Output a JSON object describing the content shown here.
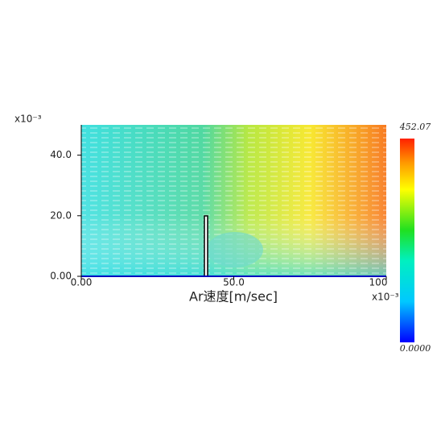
{
  "chart_data": {
    "type": "vector-field",
    "xlabel": "Ar速度[m/sec]",
    "x_multiplier": "x10⁻³",
    "y_multiplier": "x10⁻³",
    "xlim": [
      0,
      100
    ],
    "ylim": [
      0,
      50
    ],
    "xticks": [
      {
        "value": 0,
        "label": "0.00"
      },
      {
        "value": 50,
        "label": "50.0"
      },
      100
    ],
    "yticks": [
      {
        "value": 0,
        "label": "0.00"
      },
      {
        "value": 20,
        "label": "20.0"
      },
      {
        "value": 40,
        "label": "40.0"
      }
    ],
    "colorbar": {
      "lim": [
        0,
        452.07
      ],
      "ticks": [
        {
          "value": 0,
          "label": "0.0000"
        },
        452.07
      ]
    }
  }
}
